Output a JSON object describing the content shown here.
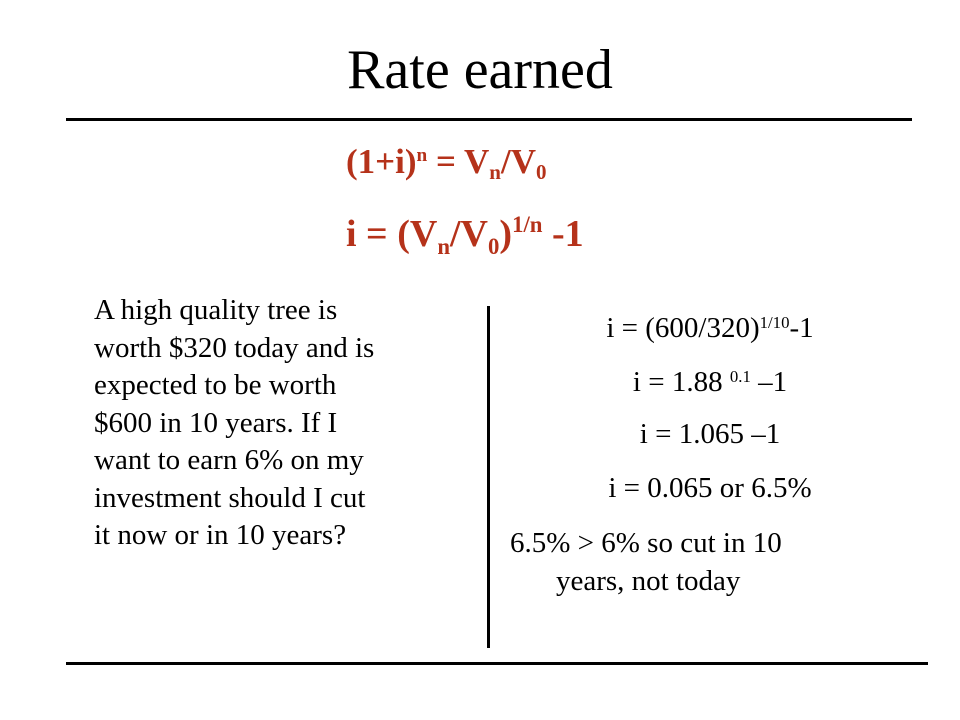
{
  "title": "Rate earned",
  "formula1": {
    "lhs": "(1+i)",
    "lhs_sup": "n",
    "eq": " = V",
    "sub1": "n",
    "slash": "/V",
    "sub2": "0"
  },
  "formula2": {
    "lhs": "i = (V",
    "sub1": "n",
    "slash": "/V",
    "sub2": "0",
    "close": ")",
    "sup": "1/n",
    "tail": " -1"
  },
  "problem_lines": [
    "A high quality tree is",
    "worth $320 today and is",
    "expected to be worth",
    "$600 in 10 years. If I",
    "want to earn 6% on my",
    "investment should I cut",
    "it now or in 10 years?"
  ],
  "calc": {
    "line1": {
      "base": "i = (600/320)",
      "sup": "1/10",
      "tail": "-1"
    },
    "line2": {
      "base": "i = 1.88 ",
      "sup": "0.1",
      "tail": " –1"
    },
    "line3": "i = 1.065 –1",
    "line4": "i = 0.065 or 6.5%"
  },
  "conclusion_lines": [
    "6.5% > 6% so cut in 10",
    "years, not today"
  ],
  "colors": {
    "formula": "#b5321a",
    "text": "#000000",
    "background": "#ffffff"
  }
}
